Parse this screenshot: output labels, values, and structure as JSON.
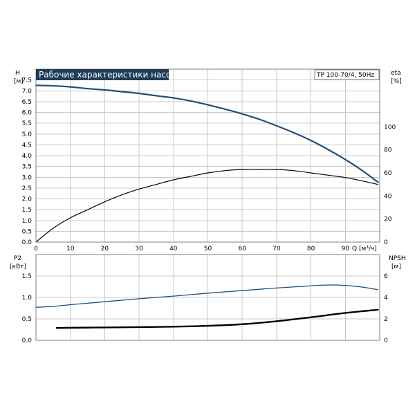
{
  "chart_data": [
    {
      "type": "line",
      "title": "Рабочие характеристики насоса",
      "model_label": "TP 100-70/4, 50Hz",
      "xlabel": "Q [м³/ч]",
      "ylabel": "H [м]",
      "ylabel_name": "H",
      "ylabel_unit": "[м]",
      "y2label_name": "eta",
      "y2label_unit": "[%]",
      "xlim": [
        0,
        100
      ],
      "ylim": [
        0,
        8
      ],
      "y2lim": [
        0,
        150
      ],
      "x_ticks": [
        0,
        10,
        20,
        30,
        40,
        50,
        60,
        70,
        80,
        90
      ],
      "y_ticks": [
        0.0,
        0.5,
        1.0,
        1.5,
        2.0,
        2.5,
        3.0,
        3.5,
        4.0,
        4.5,
        5.0,
        5.5,
        6.0,
        6.5,
        7.0,
        7.5
      ],
      "y2_ticks": [
        0,
        20,
        40,
        60,
        80,
        100
      ],
      "grid": true,
      "series": [
        {
          "axis": "left",
          "color": "#1f4e79",
          "x": [
            0,
            5,
            10,
            15,
            20,
            25,
            30,
            35,
            40,
            45,
            50,
            55,
            60,
            65,
            70,
            75,
            80,
            85,
            90,
            95,
            99.5
          ],
          "values": [
            7.25,
            7.23,
            7.18,
            7.1,
            7.04,
            6.96,
            6.88,
            6.77,
            6.67,
            6.53,
            6.35,
            6.15,
            5.93,
            5.68,
            5.38,
            5.06,
            4.7,
            4.28,
            3.82,
            3.3,
            2.77
          ]
        },
        {
          "axis": "right",
          "color": "#000000",
          "x": [
            0,
            5,
            10,
            15,
            20,
            25,
            30,
            35,
            40,
            45,
            50,
            55,
            60,
            65,
            70,
            75,
            80,
            85,
            90,
            95,
            99.5
          ],
          "values": [
            0,
            12,
            21,
            28,
            35,
            41,
            46,
            50,
            54,
            57,
            60,
            62,
            63,
            63,
            63,
            62,
            60,
            58,
            56,
            53,
            50
          ]
        }
      ]
    },
    {
      "type": "line",
      "xlim": [
        0,
        100
      ],
      "ylim": [
        0,
        2
      ],
      "y2lim": [
        0,
        8
      ],
      "ylabel_name": "P2",
      "ylabel_unit": "[кВт]",
      "y2label_name": "NPSH",
      "y2label_unit": "[м]",
      "y_ticks": [
        0.0,
        0.5,
        1.0,
        1.5
      ],
      "y2_ticks": [
        0,
        2,
        4,
        6
      ],
      "grid": true,
      "series": [
        {
          "axis": "left",
          "color": "#1f4e79",
          "x": [
            0,
            5,
            10,
            20,
            30,
            40,
            50,
            60,
            70,
            80,
            85,
            90,
            95,
            99.5
          ],
          "values": [
            0.77,
            0.79,
            0.83,
            0.9,
            0.97,
            1.03,
            1.1,
            1.16,
            1.22,
            1.27,
            1.29,
            1.28,
            1.24,
            1.18
          ]
        },
        {
          "axis": "right",
          "color": "#000000",
          "x": [
            6,
            10,
            20,
            30,
            40,
            50,
            60,
            70,
            80,
            90,
            99.5
          ],
          "values": [
            1.15,
            1.17,
            1.2,
            1.23,
            1.27,
            1.35,
            1.5,
            1.78,
            2.15,
            2.55,
            2.85
          ]
        }
      ]
    }
  ]
}
